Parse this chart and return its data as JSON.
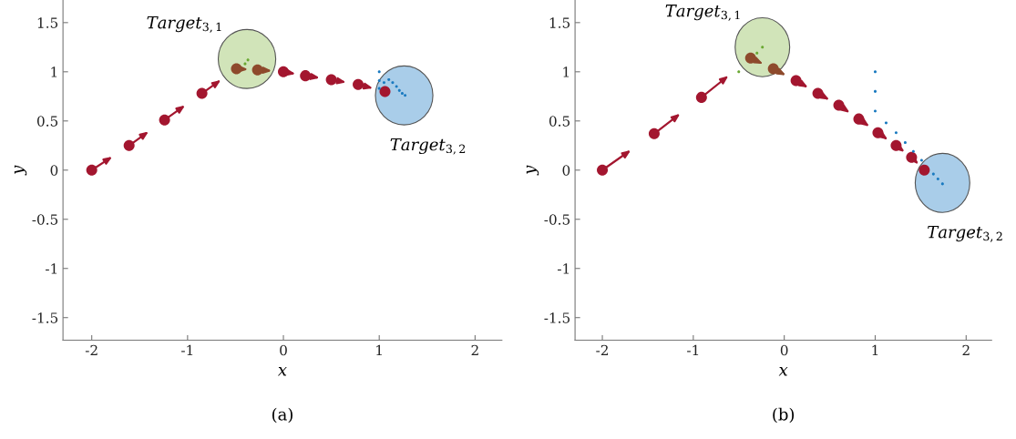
{
  "chart_data": [
    {
      "type": "scatter",
      "xlabel": "x",
      "ylabel": "y",
      "xlim": [
        -2.3,
        2.28
      ],
      "ylim": [
        -1.73,
        1.73
      ],
      "xticks": [
        -2,
        -1,
        0,
        1,
        2
      ],
      "yticks": [
        {
          "value": -1.5,
          "label": "-1.5"
        },
        {
          "value": -1,
          "label": "-1"
        },
        {
          "value": -0.5,
          "label": "-0.5"
        },
        0,
        {
          "value": 0.5,
          "label": "0.5"
        },
        1,
        {
          "value": 1.5,
          "label": "1.5"
        }
      ],
      "grid": false,
      "marker": "circle",
      "annotations": [
        "(a)"
      ],
      "series": [
        {
          "type": "bubble",
          "name": "Target$_{3,1}$",
          "color": "#d1e4b9",
          "x": [
            -0.38
          ],
          "values": [
            1.13
          ],
          "sizes": [
            1
          ]
        },
        {
          "type": "bubble",
          "name": "Target$_{3,2}$",
          "color": "#a9cde9",
          "x": [
            1.26
          ],
          "values": [
            0.76
          ],
          "sizes": [
            1
          ]
        },
        {
          "color": "#a3162f",
          "x": [
            -2,
            -1.61,
            -1.24,
            -0.85,
            -0.49,
            -0.27,
            0,
            0.23,
            0.5,
            0.78,
            1.06
          ],
          "values": [
            0,
            0.25,
            0.51,
            0.78,
            null,
            null,
            1.0,
            0.96,
            0.92,
            0.87,
            0.8
          ]
        },
        {
          "color": "#8e4a2c",
          "x": [
            -0.49,
            -0.27
          ],
          "values": [
            1.03,
            1.02
          ]
        },
        {
          "color": "#1a7ac0",
          "x": [
            1.0,
            1.0,
            1.0,
            1.05,
            1.1,
            1.14,
            1.18,
            1.21,
            1.24,
            1.27
          ],
          "values": [
            1.0,
            0.91,
            0.83,
            0.89,
            0.92,
            0.89,
            0.85,
            0.81,
            0.78,
            0.76
          ]
        },
        {
          "color": "#6aa832",
          "x": [
            -0.4,
            -0.37
          ],
          "values": [
            1.08,
            1.12
          ]
        }
      ]
    },
    {
      "type": "scatter",
      "xlabel": "x",
      "ylabel": "y",
      "xlim": [
        -2.3,
        2.28
      ],
      "ylim": [
        -1.73,
        1.73
      ],
      "xticks": [
        -2,
        -1,
        0,
        1,
        2
      ],
      "yticks": [
        {
          "value": -1.5,
          "label": "-1.5"
        },
        {
          "value": -1,
          "label": "-1"
        },
        {
          "value": -0.5,
          "label": "-0.5"
        },
        0,
        {
          "value": 0.5,
          "label": "0.5"
        },
        1,
        {
          "value": 1.5,
          "label": "1.5"
        }
      ],
      "grid": false,
      "marker": "circle",
      "annotations": [
        "(b)"
      ],
      "series": [
        {
          "type": "bubble",
          "name": "Target$_{3,1}$",
          "color": "#d1e4b9",
          "x": [
            -0.24
          ],
          "values": [
            1.25
          ],
          "sizes": [
            1
          ]
        },
        {
          "type": "bubble",
          "name": "Target$_{3,2}$",
          "color": "#a9cde9",
          "x": [
            1.74
          ],
          "values": [
            -0.13
          ],
          "sizes": [
            1
          ]
        },
        {
          "color": "#a3162f",
          "x": [
            -2,
            -1.43,
            -0.91,
            -0.37,
            -0.12,
            0.13,
            0.37,
            0.6,
            0.82,
            1.03,
            1.23,
            1.4,
            1.54
          ],
          "values": [
            0,
            0.37,
            0.74,
            null,
            null,
            0.91,
            0.78,
            0.66,
            0.52,
            0.38,
            0.25,
            0.13,
            0.0
          ]
        },
        {
          "color": "#8e4a2c",
          "x": [
            -0.37,
            -0.12
          ],
          "values": [
            1.14,
            1.03
          ]
        },
        {
          "color": "#1a7ac0",
          "x": [
            1.0,
            1.0,
            1.0,
            1.12,
            1.23,
            1.33,
            1.42,
            1.51,
            1.64,
            1.69,
            1.74
          ],
          "values": [
            1.0,
            0.8,
            0.6,
            0.48,
            0.38,
            0.28,
            0.19,
            0.1,
            -0.04,
            -0.09,
            -0.14
          ]
        },
        {
          "color": "#6aa832",
          "x": [
            -0.5,
            -0.3,
            -0.24
          ],
          "values": [
            1.0,
            1.19,
            1.25
          ]
        }
      ]
    }
  ]
}
